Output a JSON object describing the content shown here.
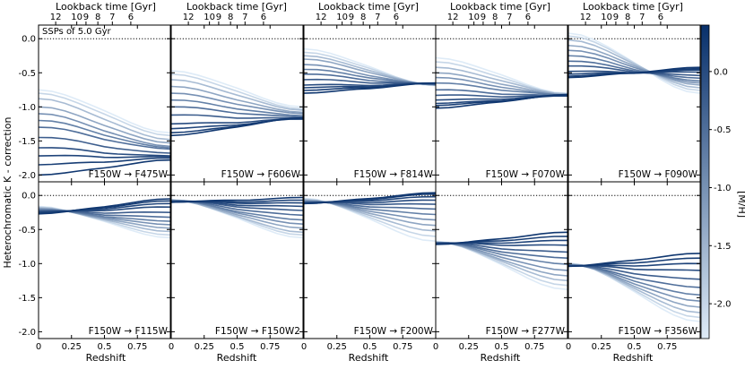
{
  "chart_data": {
    "type": "line",
    "annotation": "SSPs of 5.0 Gyr",
    "ylabel": "Heterochromatic K - correction",
    "xlabel": "Redshift",
    "top_xlabel": "Lookback time [Gyr]",
    "x_ticks": [
      0,
      0.25,
      0.5,
      0.75
    ],
    "x_tick_labels": [
      "0",
      "0.25",
      "0.5",
      "0.75"
    ],
    "xlim": [
      0,
      1
    ],
    "y_ticks": [
      0.0,
      -0.5,
      -1.0,
      -1.5,
      -2.0
    ],
    "y_tick_labels": [
      "0.0",
      "-0.5",
      "-1.0",
      "-1.5",
      "-2.0"
    ],
    "ylim": [
      -2.1,
      0.2
    ],
    "lookback_ticks": [
      {
        "label": "12",
        "z": 0.13
      },
      {
        "label": "10",
        "z": 0.29
      },
      {
        "label": "9",
        "z": 0.36
      },
      {
        "label": "8",
        "z": 0.45
      },
      {
        "label": "7",
        "z": 0.56
      },
      {
        "label": "6",
        "z": 0.7
      }
    ],
    "colorbar": {
      "label": "[M/H]",
      "ticks": [
        0.0,
        -0.5,
        -1.0,
        -1.5,
        -2.0
      ],
      "tick_labels": [
        "0.0",
        "-0.5",
        "-1.0",
        "-1.5",
        "-2.0"
      ],
      "range": [
        -2.3,
        0.4
      ],
      "dark_color": "#08306b",
      "light_color": "#deebf7"
    },
    "x": [
      0,
      0.1,
      0.2,
      0.3,
      0.4,
      0.5,
      0.6,
      0.7,
      0.8,
      0.9,
      1.0
    ],
    "metallicities": [
      0.3,
      0.2,
      0.1,
      0.0,
      -0.25,
      -0.5,
      -0.75,
      -1.0,
      -1.3,
      -1.6,
      -2.0,
      -2.3
    ],
    "panels": [
      {
        "label": "F150W → F475W",
        "start": [
          -2.0,
          -1.85,
          -1.72,
          -1.6,
          -1.45,
          -1.3,
          -1.2,
          -1.1,
          -1.0,
          -0.88,
          -0.8,
          -0.75
        ],
        "end": [
          -1.78,
          -1.75,
          -1.73,
          -1.72,
          -1.68,
          -1.62,
          -1.6,
          -1.58,
          -1.53,
          -1.48,
          -1.42,
          -1.38
        ]
      },
      {
        "label": "F150W → F606W",
        "start": [
          -1.42,
          -1.38,
          -1.32,
          -1.25,
          -1.12,
          -1.0,
          -0.9,
          -0.8,
          -0.7,
          -0.6,
          -0.52,
          -0.47
        ],
        "end": [
          -1.16,
          -1.17,
          -1.18,
          -1.18,
          -1.17,
          -1.15,
          -1.13,
          -1.1,
          -1.08,
          -1.05,
          -1.03,
          -1.0
        ]
      },
      {
        "label": "F150W → F814W",
        "start": [
          -0.8,
          -0.76,
          -0.72,
          -0.68,
          -0.6,
          -0.52,
          -0.45,
          -0.38,
          -0.3,
          -0.25,
          -0.2,
          -0.15
        ],
        "end": [
          -0.65,
          -0.65,
          -0.66,
          -0.66,
          -0.66,
          -0.67,
          -0.67,
          -0.68,
          -0.68,
          -0.68,
          -0.68,
          -0.69
        ]
      },
      {
        "label": "F150W → F070W",
        "start": [
          -1.02,
          -0.98,
          -0.95,
          -0.9,
          -0.83,
          -0.75,
          -0.65,
          -0.57,
          -0.5,
          -0.42,
          -0.34,
          -0.28
        ],
        "end": [
          -0.82,
          -0.83,
          -0.84,
          -0.84,
          -0.84,
          -0.84,
          -0.83,
          -0.83,
          -0.82,
          -0.81,
          -0.81,
          -0.8
        ]
      },
      {
        "label": "F150W → F090W",
        "start": [
          -0.57,
          -0.55,
          -0.52,
          -0.48,
          -0.4,
          -0.33,
          -0.25,
          -0.17,
          -0.1,
          -0.02,
          0.04,
          0.08
        ],
        "end": [
          -0.42,
          -0.44,
          -0.46,
          -0.49,
          -0.54,
          -0.58,
          -0.62,
          -0.65,
          -0.68,
          -0.72,
          -0.76,
          -0.8
        ]
      },
      {
        "label": "F150W → F115W",
        "start": [
          -0.27,
          -0.26,
          -0.25,
          -0.24,
          -0.23,
          -0.22,
          -0.21,
          -0.2,
          -0.19,
          -0.18,
          -0.17,
          -0.16
        ],
        "end": [
          -0.05,
          -0.08,
          -0.12,
          -0.17,
          -0.25,
          -0.32,
          -0.38,
          -0.43,
          -0.48,
          -0.53,
          -0.58,
          -0.62
        ]
      },
      {
        "label": "F150W → F150W2",
        "start": [
          -0.1,
          -0.1,
          -0.09,
          -0.09,
          -0.08,
          -0.08,
          -0.08,
          -0.07,
          -0.07,
          -0.07,
          -0.06,
          -0.06
        ],
        "end": [
          -0.03,
          -0.07,
          -0.11,
          -0.16,
          -0.22,
          -0.29,
          -0.36,
          -0.42,
          -0.48,
          -0.54,
          -0.58,
          -0.62
        ]
      },
      {
        "label": "F150W → F200W",
        "start": [
          -0.12,
          -0.12,
          -0.11,
          -0.11,
          -0.1,
          -0.1,
          -0.09,
          -0.08,
          -0.07,
          -0.06,
          -0.05,
          -0.04
        ],
        "end": [
          0.04,
          0.02,
          -0.02,
          -0.07,
          -0.13,
          -0.2,
          -0.28,
          -0.36,
          -0.44,
          -0.52,
          -0.6,
          -0.67
        ]
      },
      {
        "label": "F150W → F277W",
        "start": [
          -0.72,
          -0.71,
          -0.71,
          -0.7,
          -0.7,
          -0.7,
          -0.69,
          -0.69,
          -0.69,
          -0.68,
          -0.68,
          -0.67
        ],
        "end": [
          -0.54,
          -0.6,
          -0.66,
          -0.73,
          -0.83,
          -0.92,
          -1.01,
          -1.1,
          -1.18,
          -1.25,
          -1.32,
          -1.38
        ]
      },
      {
        "label": "F150W → F356W",
        "start": [
          -1.04,
          -1.04,
          -1.04,
          -1.03,
          -1.03,
          -1.03,
          -1.02,
          -1.02,
          -1.01,
          -1.0,
          -1.0,
          -0.99
        ],
        "end": [
          -0.85,
          -0.92,
          -1.0,
          -1.1,
          -1.23,
          -1.35,
          -1.46,
          -1.55,
          -1.64,
          -1.72,
          -1.79,
          -1.85
        ]
      }
    ]
  }
}
